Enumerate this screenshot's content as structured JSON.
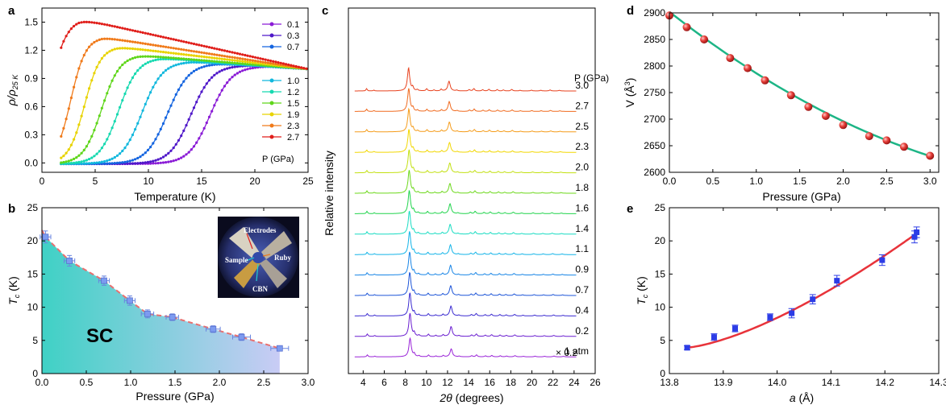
{
  "colors": {
    "p01": "#8a1bd6",
    "p03": "#4f18c9",
    "p07": "#1565e0",
    "p10": "#12b8dd",
    "p12": "#16d9b0",
    "p15": "#5fd61a",
    "p19": "#e8d300",
    "p23": "#f07a1a",
    "p27": "#e01e1a",
    "sc_fill_left": "#3fd1c5",
    "sc_fill_right": "#c9ccf5",
    "sc_label": "#e8413d",
    "fit_green": "#1db586",
    "fit_red": "#e8333a",
    "marker_blue": "#2c3ce6",
    "xrd_note": "#8a1bd6"
  },
  "chart_data": [
    {
      "panel": "a",
      "type": "line",
      "xlabel": "Temperature (K)",
      "ylabel": "ρ/ρ",
      "ylabel_sub": "25 K",
      "xlim": [
        0,
        25
      ],
      "ylim": [
        -0.1,
        1.65
      ],
      "xticks": [
        0,
        5,
        10,
        15,
        20,
        25
      ],
      "yticks": [
        "0.0",
        "0.3",
        "0.6",
        "0.9",
        "1.2",
        "1.5"
      ],
      "yticks_values": [
        0.0,
        0.3,
        0.6,
        0.9,
        1.2,
        1.5
      ],
      "legend_title": "P (GPa)",
      "series": [
        {
          "name": "0.1",
          "Tc": 15.8,
          "w": 1.0,
          "rmax": 1.03,
          "Tpk": 21.5
        },
        {
          "name": "0.3",
          "Tc": 14.0,
          "w": 1.0,
          "rmax": 1.04,
          "Tpk": 19.5
        },
        {
          "name": "0.7",
          "Tc": 11.8,
          "w": 1.0,
          "rmax": 1.06,
          "Tpk": 16.5
        },
        {
          "name": "1.0",
          "Tc": 9.4,
          "w": 0.95,
          "rmax": 1.08,
          "Tpk": 14.0
        },
        {
          "name": "1.2",
          "Tc": 7.2,
          "w": 0.9,
          "rmax": 1.12,
          "Tpk": 11.0
        },
        {
          "name": "1.5",
          "Tc": 5.6,
          "w": 0.85,
          "rmax": 1.15,
          "Tpk": 9.0
        },
        {
          "name": "1.9",
          "Tc": 4.0,
          "w": 0.75,
          "rmax": 1.24,
          "Tpk": 7.0
        },
        {
          "name": "2.3",
          "Tc": 2.7,
          "w": 0.7,
          "rmax": 1.34,
          "Tpk": 5.7
        },
        {
          "name": "2.7",
          "Tc": 0.7,
          "w": 0.8,
          "rmax": 1.54,
          "Tpk": 3.4
        }
      ]
    },
    {
      "panel": "b",
      "type": "scatter",
      "xlabel": "Pressure (GPa)",
      "ylabel": "T",
      "ylabel_sub": "c",
      "ylabel_unit": " (K)",
      "xlim": [
        0,
        3.0
      ],
      "ylim": [
        0,
        25
      ],
      "xticks": [
        "0.0",
        "0.5",
        "1.0",
        "1.5",
        "2.0",
        "2.5",
        "3.0"
      ],
      "yticks": [
        0,
        5,
        10,
        15,
        20,
        25
      ],
      "x": [
        0.04,
        0.31,
        0.7,
        0.99,
        1.19,
        1.47,
        1.93,
        2.25,
        2.68
      ],
      "y": [
        20.6,
        17.0,
        14.0,
        11.0,
        9.0,
        8.5,
        6.7,
        5.5,
        3.8
      ],
      "xerr": [
        0.06,
        0.06,
        0.06,
        0.06,
        0.07,
        0.07,
        0.08,
        0.1,
        0.1
      ],
      "yerr": [
        0.9,
        0.8,
        0.7,
        0.7,
        0.6,
        0.5,
        0.5,
        0.5,
        0.3
      ],
      "region_label": "SC",
      "inset_labels": {
        "electrodes": "Electrodes",
        "sample": "Sample",
        "ruby": "Ruby",
        "cbn": "CBN"
      }
    },
    {
      "panel": "c",
      "type": "line",
      "xlabel": "2θ (degrees)",
      "ylabel": "Relative intensity",
      "xlim": [
        2.6,
        26
      ],
      "xticks": [
        4,
        6,
        8,
        10,
        12,
        14,
        16,
        18,
        20,
        22,
        24,
        26
      ],
      "legend_title": "P (GPa)",
      "note": "× 0.2",
      "peaks": [
        [
          4.4,
          0.35,
          0.07
        ],
        [
          5.1,
          0.12,
          0.07
        ],
        [
          8.45,
          3.4,
          0.13
        ],
        [
          8.85,
          0.5,
          0.08
        ],
        [
          9.3,
          0.18,
          0.08
        ],
        [
          10.2,
          0.32,
          0.08
        ],
        [
          10.9,
          0.15,
          0.08
        ],
        [
          11.6,
          0.25,
          0.08
        ],
        [
          12.35,
          1.45,
          0.13
        ],
        [
          13.1,
          0.12,
          0.08
        ],
        [
          14.3,
          0.2,
          0.09
        ],
        [
          14.75,
          0.35,
          0.09
        ],
        [
          15.6,
          0.18,
          0.09
        ],
        [
          16.2,
          0.25,
          0.09
        ],
        [
          17.0,
          0.2,
          0.09
        ],
        [
          17.6,
          0.15,
          0.09
        ],
        [
          18.4,
          0.22,
          0.1
        ],
        [
          19.2,
          0.1,
          0.1
        ],
        [
          20.3,
          0.12,
          0.1
        ],
        [
          21.2,
          0.1,
          0.1
        ],
        [
          22.1,
          0.14,
          0.1
        ],
        [
          23.0,
          0.09,
          0.1
        ]
      ],
      "series": [
        {
          "name": "3.0",
          "shift": 0.17
        },
        {
          "name": "2.7",
          "shift": 0.15
        },
        {
          "name": "2.5",
          "shift": 0.14
        },
        {
          "name": "2.3",
          "shift": 0.13
        },
        {
          "name": "2.0",
          "shift": 0.11
        },
        {
          "name": "1.8",
          "shift": 0.1
        },
        {
          "name": "1.6",
          "shift": 0.09
        },
        {
          "name": "1.4",
          "shift": 0.08
        },
        {
          "name": "1.1",
          "shift": 0.06
        },
        {
          "name": "0.9",
          "shift": 0.05
        },
        {
          "name": "0.7",
          "shift": 0.04
        },
        {
          "name": "0.4",
          "shift": 0.02
        },
        {
          "name": "0.2",
          "shift": 0.01
        },
        {
          "name": "1 atm",
          "shift": 0.0
        }
      ]
    },
    {
      "panel": "d",
      "type": "scatter",
      "xlabel": "Pressure (GPa)",
      "ylabel": "V (Å",
      "ylabel_sup": "3",
      "ylabel_end": ")",
      "xlim": [
        0,
        3.1
      ],
      "ylim": [
        2600,
        2900
      ],
      "xticks": [
        "0.0",
        "0.5",
        "1.0",
        "1.5",
        "2.0",
        "2.5",
        "3.0"
      ],
      "yticks": [
        2600,
        2650,
        2700,
        2750,
        2800,
        2850,
        2900
      ],
      "x": [
        0.0,
        0.2,
        0.4,
        0.7,
        0.9,
        1.1,
        1.4,
        1.6,
        1.8,
        2.0,
        2.3,
        2.5,
        2.7,
        3.0
      ],
      "y": [
        2895,
        2873,
        2850,
        2815,
        2796,
        2773,
        2745,
        2723,
        2706,
        2689,
        2668,
        2660,
        2648,
        2631
      ],
      "fit": {
        "a": 2902,
        "b": -128,
        "c": 12.5
      }
    },
    {
      "panel": "e",
      "type": "scatter",
      "xlabel": "a (Å)",
      "ylabel": "T",
      "ylabel_sub": "c",
      "ylabel_unit": " (K)",
      "xlim": [
        13.8,
        14.3
      ],
      "ylim": [
        0,
        25
      ],
      "xticks": [
        "13.8",
        "13.9",
        "14.0",
        "14.1",
        "14.2",
        "14.3"
      ],
      "yticks": [
        0,
        5,
        10,
        15,
        20,
        25
      ],
      "x": [
        13.833,
        13.883,
        13.922,
        13.987,
        14.027,
        14.066,
        14.111,
        14.195,
        14.255,
        14.259
      ],
      "y": [
        3.9,
        5.5,
        6.8,
        8.5,
        9.1,
        11.2,
        14.0,
        17.1,
        20.6,
        21.3
      ],
      "yerr": [
        0.3,
        0.5,
        0.5,
        0.5,
        0.7,
        0.7,
        0.8,
        0.8,
        0.9,
        0.8
      ],
      "fit": {
        "x0": 13.66,
        "k": 36.2,
        "p": 1.45
      }
    }
  ],
  "panel_labels": [
    "a",
    "b",
    "c",
    "d",
    "e"
  ]
}
